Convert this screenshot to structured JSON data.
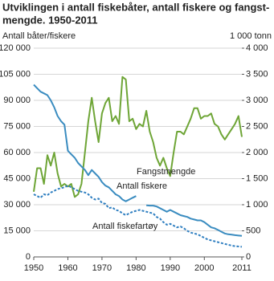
{
  "chart_data": {
    "type": "line",
    "title": [
      "Utviklingen i antall fiskebåter, antall fiskere og fangst-",
      "mengde. 1950-2011"
    ],
    "y_label": "Antall båter/fiskere",
    "y2_label": "1 000 tonn",
    "x": [
      1950,
      1951,
      1952,
      1953,
      1954,
      1955,
      1956,
      1957,
      1958,
      1959,
      1960,
      1961,
      1962,
      1963,
      1964,
      1965,
      1966,
      1967,
      1968,
      1969,
      1970,
      1971,
      1972,
      1973,
      1974,
      1975,
      1976,
      1977,
      1978,
      1979,
      1980,
      1981,
      1982,
      1983,
      1984,
      1985,
      1986,
      1987,
      1988,
      1989,
      1990,
      1991,
      1992,
      1993,
      1994,
      1995,
      1996,
      1997,
      1998,
      1999,
      2000,
      2001,
      2002,
      2003,
      2004,
      2005,
      2006,
      2007,
      2008,
      2009,
      2010,
      2011
    ],
    "xlim": [
      1950,
      2011
    ],
    "xticks": [
      1950,
      1960,
      1970,
      1980,
      1990,
      2000,
      2011
    ],
    "ylim": [
      0,
      120000
    ],
    "yticks": [
      0,
      {
        "value": 15000,
        "label": "15 000"
      },
      {
        "value": 30000,
        "label": "30 000"
      },
      {
        "value": 45000,
        "label": "45 000"
      },
      {
        "value": 60000,
        "label": "60 000"
      },
      {
        "value": 75000,
        "label": "75 000"
      },
      {
        "value": 90000,
        "label": "90 000"
      },
      {
        "value": 105000,
        "label": "105 000"
      },
      {
        "value": 120000,
        "label": "120 000"
      }
    ],
    "y2lim": [
      0,
      4000
    ],
    "y2ticks": [
      0,
      500,
      {
        "value": 1000,
        "label": "1 000"
      },
      {
        "value": 1500,
        "label": "1 500"
      },
      {
        "value": 2000,
        "label": "2 000"
      },
      {
        "value": 2500,
        "label": "2 500"
      },
      {
        "value": 3000,
        "label": "3 000"
      },
      {
        "value": 3500,
        "label": "3 500"
      },
      {
        "value": 4000,
        "label": "4 000"
      }
    ],
    "grid": true,
    "series": [
      {
        "name": "Fangstmengde",
        "color": "#6ea536",
        "axis": "y2",
        "line_style": "solid",
        "values": [
          1250,
          1700,
          1700,
          1400,
          1950,
          1750,
          2000,
          1600,
          1350,
          1400,
          1350,
          1400,
          1150,
          1200,
          1400,
          2000,
          2600,
          3050,
          2600,
          2200,
          2750,
          2950,
          3050,
          2600,
          2700,
          2550,
          3450,
          3400,
          2600,
          2650,
          2450,
          2550,
          2500,
          2800,
          2400,
          2200,
          1900,
          1750,
          1900,
          1700,
          1550,
          2000,
          2400,
          2400,
          2350,
          2500,
          2650,
          2850,
          2850,
          2650,
          2700,
          2700,
          2750,
          2550,
          2500,
          2350,
          2250,
          2350,
          2450,
          2550,
          2700,
          2300
        ]
      },
      {
        "name": "Antall fiskere",
        "color": "#3a8cc0",
        "line_style": "solid",
        "values": [
          99000,
          97000,
          95000,
          94000,
          93000,
          90000,
          86000,
          81000,
          78000,
          76000,
          61000,
          59000,
          57000,
          54000,
          52000,
          50000,
          47000,
          50000,
          48000,
          46000,
          43000,
          41000,
          40000,
          38000,
          36000,
          35000,
          33000,
          32000,
          33000,
          34000,
          35000,
          null,
          null,
          29700,
          29500,
          29500,
          29000,
          28000,
          27000,
          26000,
          27000,
          26000,
          25000,
          24000,
          23500,
          23000,
          22000,
          21500,
          21000,
          21000,
          20000,
          18500,
          17000,
          16500,
          15500,
          14500,
          13500,
          13000,
          12800,
          12500,
          12300,
          12100
        ]
      },
      {
        "name": "Antall fiskefartøy",
        "color": "#2f7fc1",
        "line_style": "dashed",
        "values": [
          36000,
          35000,
          34000,
          36000,
          35500,
          37000,
          38000,
          39000,
          39500,
          40000,
          41000,
          40000,
          39000,
          38000,
          37500,
          37000,
          36000,
          34000,
          33000,
          33500,
          31000,
          30500,
          28000,
          28500,
          27000,
          26500,
          25000,
          24000,
          25000,
          26000,
          26500,
          27000,
          26500,
          26000,
          25500,
          25000,
          23000,
          22000,
          20000,
          18500,
          19000,
          18000,
          17000,
          17500,
          16500,
          15000,
          14000,
          13500,
          13000,
          12000,
          11000,
          10000,
          9500,
          9000,
          8500,
          8000,
          7500,
          7000,
          6500,
          6200,
          6000,
          5800
        ]
      }
    ]
  }
}
